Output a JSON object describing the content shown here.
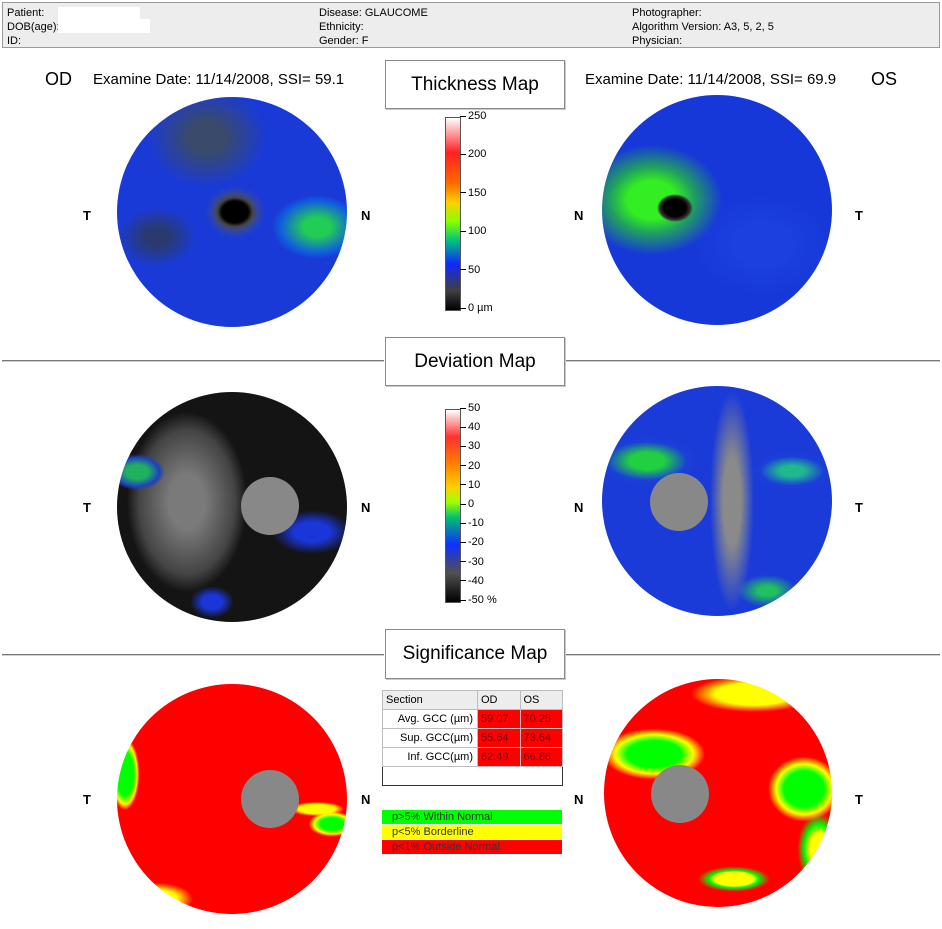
{
  "header": {
    "patient_label": "Patient:",
    "dob_label": "DOB(age):",
    "id_label": "ID:",
    "disease_label": "Disease: GLAUCOME",
    "ethnicity_label": "Ethnicity:",
    "gender_label": "Gender: F",
    "photographer_label": "Photographer:",
    "algorithm_label": "Algorithm Version: A3, 5, 2, 5",
    "physician_label": "Physician:"
  },
  "od": {
    "eye_label": "OD",
    "exam_text": "Examine Date: 11/14/2008, SSI= 59.1",
    "temporal": "T",
    "nasal": "N"
  },
  "os": {
    "eye_label": "OS",
    "exam_text": "Examine Date: 11/14/2008, SSI= 69.9",
    "temporal": "T",
    "nasal": "N"
  },
  "thickness": {
    "title": "Thickness Map",
    "scale": [
      "250",
      "200",
      "150",
      "100",
      "50",
      "0 µm"
    ]
  },
  "deviation": {
    "title": "Deviation Map",
    "scale": [
      "50",
      "40",
      "30",
      "20",
      "10",
      "0",
      "-10",
      "-20",
      "-30",
      "-40",
      "-50 %"
    ]
  },
  "significance": {
    "title": "Significance Map",
    "table": {
      "headers": [
        "Section",
        "OD",
        "OS"
      ],
      "rows": [
        {
          "label": "Avg. GCC (µm)",
          "od": "59.07",
          "os": "70.25"
        },
        {
          "label": "Sup. GCC(µm)",
          "od": "55.64",
          "os": "73.64"
        },
        {
          "label": "Inf. GCC(µm)",
          "od": "62.49",
          "os": "66.86"
        }
      ]
    },
    "legend": [
      {
        "text": "p>5% Within Normal",
        "color": "#00ff00"
      },
      {
        "text": "p<5% Borderline",
        "color": "#ffff00"
      },
      {
        "text": "p<1% Outside Normal",
        "color": "#ff0000"
      }
    ]
  },
  "colors": {
    "normal": "#00ff00",
    "borderline": "#ffff00",
    "outside": "#ff0000",
    "disc": "#888888",
    "thickness_blue": "#1030e0"
  }
}
